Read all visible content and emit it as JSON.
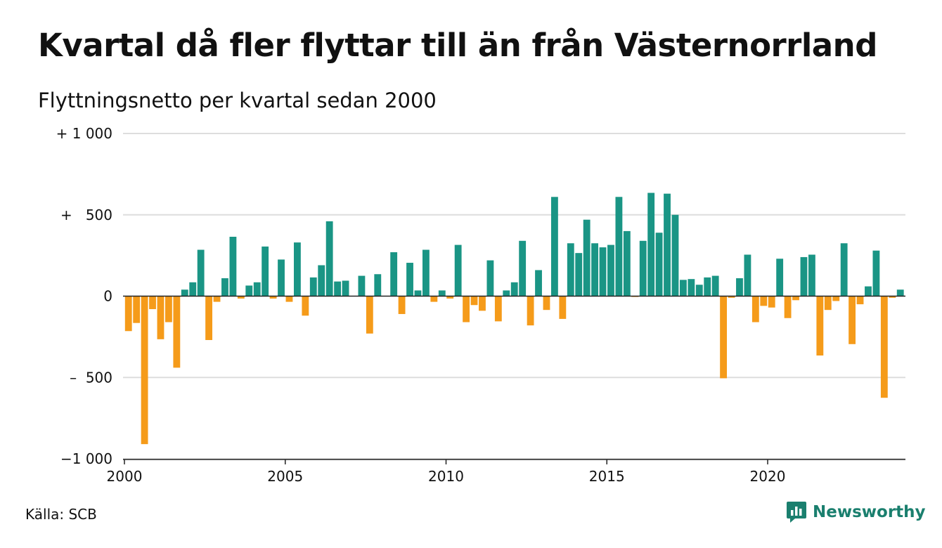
{
  "title": "Kvartal då fler flyttar till än från Västernorrland",
  "subtitle": "Flyttningsnetto per kvartal sedan 2000",
  "source": "Källa: SCB",
  "brand": "Newsworthy",
  "colors": {
    "positive": "#1a9585",
    "negative": "#f59b1a",
    "grid": "#dddddd",
    "brand": "#1a7f6e"
  },
  "chart_data": {
    "type": "bar",
    "title": "Kvartal då fler flyttar till än från Västernorrland",
    "subtitle": "Flyttningsnetto per kvartal sedan 2000",
    "x_start_year": 2000,
    "periods_per_year": 4,
    "xticks": [
      "2000",
      "2005",
      "2010",
      "2015",
      "2020"
    ],
    "yticks": [
      {
        "value": 1000,
        "label": "+ 1 000"
      },
      {
        "value": 500,
        "label": "+   500"
      },
      {
        "value": 0,
        "label": "0"
      },
      {
        "value": -500,
        "label": "–  500"
      },
      {
        "value": -1000,
        "label": "−1 000"
      }
    ],
    "ylim": [
      -1000,
      1000
    ],
    "grid": true,
    "values": [
      -215,
      -165,
      -910,
      -80,
      -265,
      -160,
      -440,
      40,
      85,
      285,
      -270,
      -35,
      110,
      365,
      -15,
      65,
      85,
      305,
      -15,
      225,
      -35,
      330,
      -120,
      115,
      190,
      460,
      90,
      95,
      0,
      125,
      -230,
      135,
      0,
      270,
      -110,
      205,
      35,
      285,
      -35,
      35,
      -15,
      315,
      -160,
      -55,
      -90,
      220,
      -155,
      35,
      85,
      340,
      -180,
      160,
      -85,
      610,
      -140,
      325,
      265,
      470,
      325,
      300,
      315,
      610,
      400,
      -5,
      340,
      635,
      390,
      630,
      500,
      100,
      105,
      70,
      115,
      125,
      -505,
      -10,
      110,
      255,
      -160,
      -60,
      -70,
      230,
      -135,
      -25,
      240,
      255,
      -365,
      -85,
      -30,
      325,
      -295,
      -50,
      60,
      280,
      -625,
      -10,
      40
    ]
  }
}
